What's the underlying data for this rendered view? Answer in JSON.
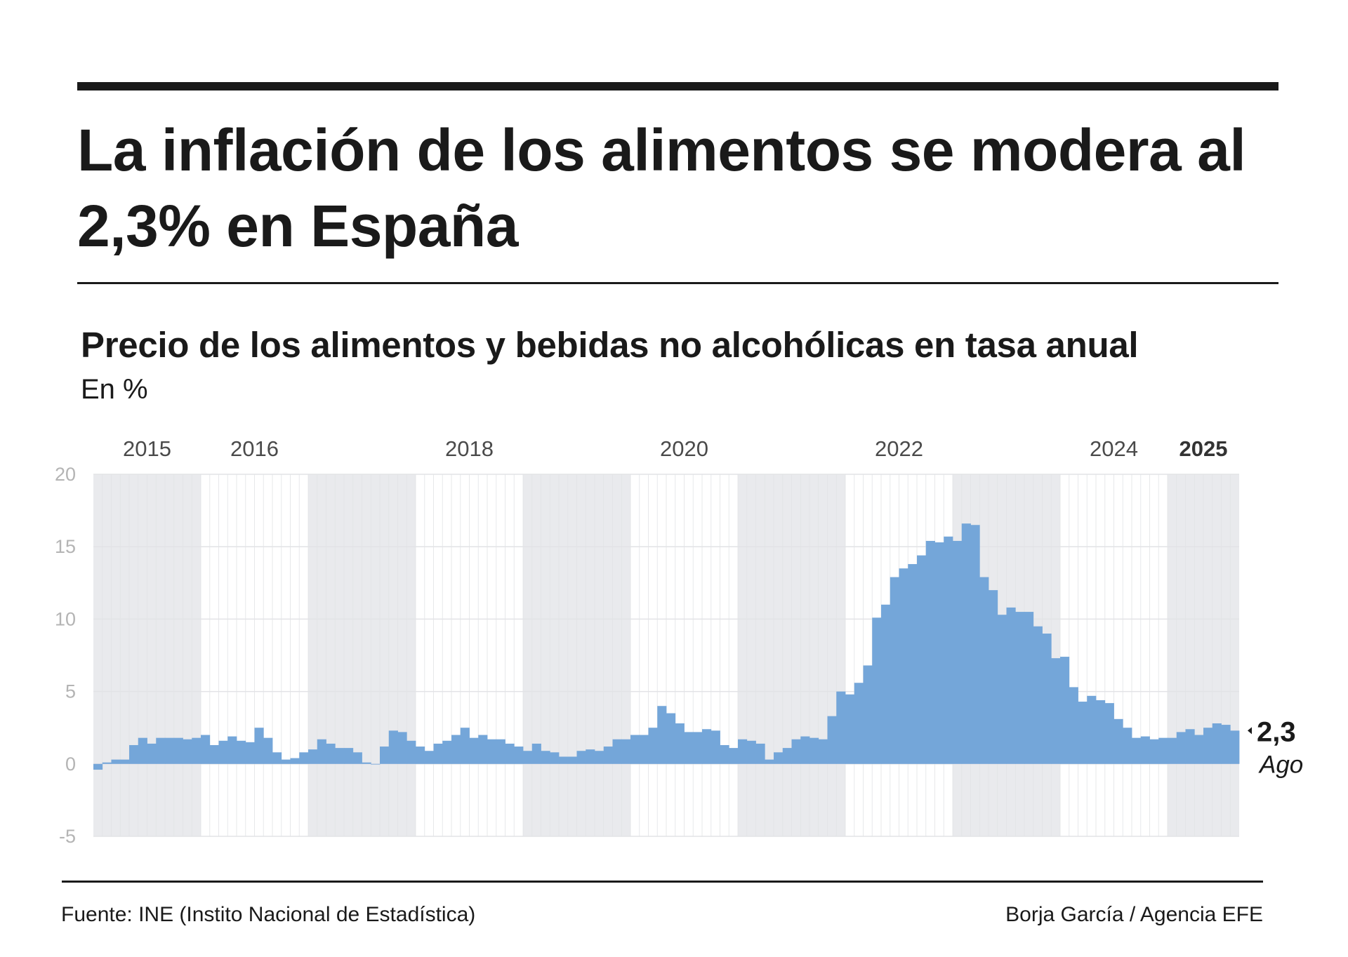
{
  "header": {
    "title": "La inflación de los alimentos se modera al 2,3% en España"
  },
  "footer": {
    "source": "Fuente: INE (Instito Nacional de Estadística)",
    "credit": "Borja García / Agencia EFE"
  },
  "colors": {
    "bar": "#74a6d9",
    "band": "#e9eaed",
    "grid": "#e2e3e6",
    "tick_label": "#b4b4b4",
    "year_label": "#4a4a4a",
    "text": "#1a1a1a"
  },
  "chart_data": {
    "type": "bar",
    "title": "Precio de los alimentos y bebidas no alcohólicas en tasa anual",
    "subtitle": "En %",
    "xlabel": "",
    "ylabel": "En %",
    "ylim": [
      -5,
      20
    ],
    "yticks": [
      20,
      15,
      10,
      5,
      0,
      -5
    ],
    "ytick_labels": [
      "20",
      "15",
      "10",
      "5",
      "0",
      "-5"
    ],
    "grid": true,
    "start": "2015-01",
    "end": "2025-08",
    "year_labels": [
      {
        "year": 2015,
        "label": "2015",
        "bold": false
      },
      {
        "year": 2016,
        "label": "2016",
        "bold": false
      },
      {
        "year": 2018,
        "label": "2018",
        "bold": false
      },
      {
        "year": 2020,
        "label": "2020",
        "bold": false
      },
      {
        "year": 2022,
        "label": "2022",
        "bold": false
      },
      {
        "year": 2024,
        "label": "2024",
        "bold": false
      },
      {
        "year": 2025,
        "label": "2025",
        "bold": true
      }
    ],
    "shaded_years": [
      2015,
      2017,
      2019,
      2021,
      2023,
      2025
    ],
    "series": [
      {
        "name": "Alimentos y bebidas no alcohólicas (tasa anual, %)",
        "years": [
          {
            "year": 2015,
            "values": [
              -0.4,
              0.1,
              0.3,
              0.3,
              1.3,
              1.8,
              1.4,
              1.8,
              1.8,
              1.8,
              1.7,
              1.8
            ]
          },
          {
            "year": 2016,
            "values": [
              2.0,
              1.3,
              1.6,
              1.9,
              1.6,
              1.5,
              2.5,
              1.8,
              0.8,
              0.3,
              0.4,
              0.8
            ]
          },
          {
            "year": 2017,
            "values": [
              1.0,
              1.7,
              1.4,
              1.1,
              1.1,
              0.8,
              0.1,
              0.0,
              1.2,
              2.3,
              2.2,
              1.6
            ]
          },
          {
            "year": 2018,
            "values": [
              1.2,
              0.9,
              1.4,
              1.6,
              2.0,
              2.5,
              1.8,
              2.0,
              1.7,
              1.7,
              1.4,
              1.2
            ]
          },
          {
            "year": 2019,
            "values": [
              0.9,
              1.4,
              0.9,
              0.8,
              0.5,
              0.5,
              0.9,
              1.0,
              0.9,
              1.2,
              1.7,
              1.7
            ]
          },
          {
            "year": 2020,
            "values": [
              2.0,
              2.0,
              2.5,
              4.0,
              3.5,
              2.8,
              2.2,
              2.2,
              2.4,
              2.3,
              1.3,
              1.1
            ]
          },
          {
            "year": 2021,
            "values": [
              1.7,
              1.6,
              1.4,
              0.3,
              0.8,
              1.1,
              1.7,
              1.9,
              1.8,
              1.7,
              3.3,
              5.0
            ]
          },
          {
            "year": 2022,
            "values": [
              4.8,
              5.6,
              6.8,
              10.1,
              11.0,
              12.9,
              13.5,
              13.8,
              14.4,
              15.4,
              15.3,
              15.7
            ]
          },
          {
            "year": 2023,
            "values": [
              15.4,
              16.6,
              16.5,
              12.9,
              12.0,
              10.3,
              10.8,
              10.5,
              10.5,
              9.5,
              9.0,
              7.3
            ]
          },
          {
            "year": 2024,
            "values": [
              7.4,
              5.3,
              4.3,
              4.7,
              4.4,
              4.2,
              3.1,
              2.5,
              1.8,
              1.9,
              1.7,
              1.8
            ]
          },
          {
            "year": 2025,
            "values": [
              1.8,
              2.2,
              2.4,
              2.0,
              2.5,
              2.8,
              2.7,
              2.3
            ]
          }
        ]
      }
    ],
    "annotation": {
      "value_label": "2,3",
      "period_label": "Ago",
      "marker": "left-pointing-triangle"
    }
  }
}
